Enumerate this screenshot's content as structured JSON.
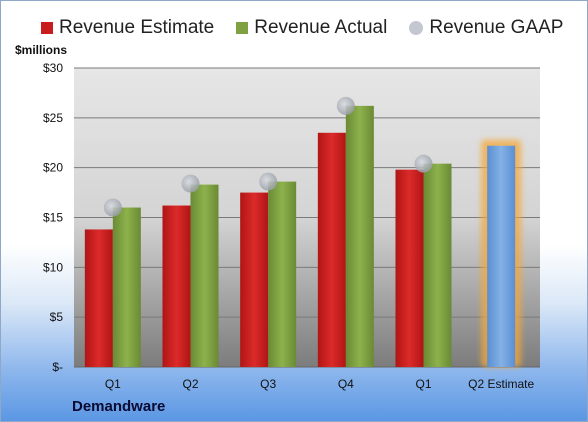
{
  "chart_data": {
    "type": "bar",
    "title": "",
    "ylabel": "$millions",
    "xlabel": "Demandware",
    "categories": [
      "Q1",
      "Q2",
      "Q3",
      "Q4",
      "Q1",
      "Q2 Estimate"
    ],
    "y_ticks": [
      "$-",
      "$5",
      "$10",
      "$15",
      "$20",
      "$25",
      "$30"
    ],
    "ylim": [
      0,
      30
    ],
    "grid": true,
    "legend_position": "top",
    "series": [
      {
        "name": "Revenue Estimate",
        "type": "bar",
        "color": "#c91d1d",
        "values": [
          13.8,
          16.2,
          17.5,
          23.5,
          19.8,
          null
        ]
      },
      {
        "name": "Revenue Actual",
        "type": "bar",
        "color": "#7fa142",
        "values": [
          16.0,
          18.3,
          18.6,
          26.2,
          20.4,
          null
        ]
      },
      {
        "name": "Revenue GAAP",
        "type": "scatter",
        "color": "#b8bec8",
        "values": [
          16.0,
          18.4,
          18.6,
          26.2,
          20.4,
          null
        ]
      }
    ],
    "highlight": {
      "category_index": 5,
      "value": 22.2,
      "color": "#6fa0dc",
      "glow": "#f5a838"
    }
  }
}
